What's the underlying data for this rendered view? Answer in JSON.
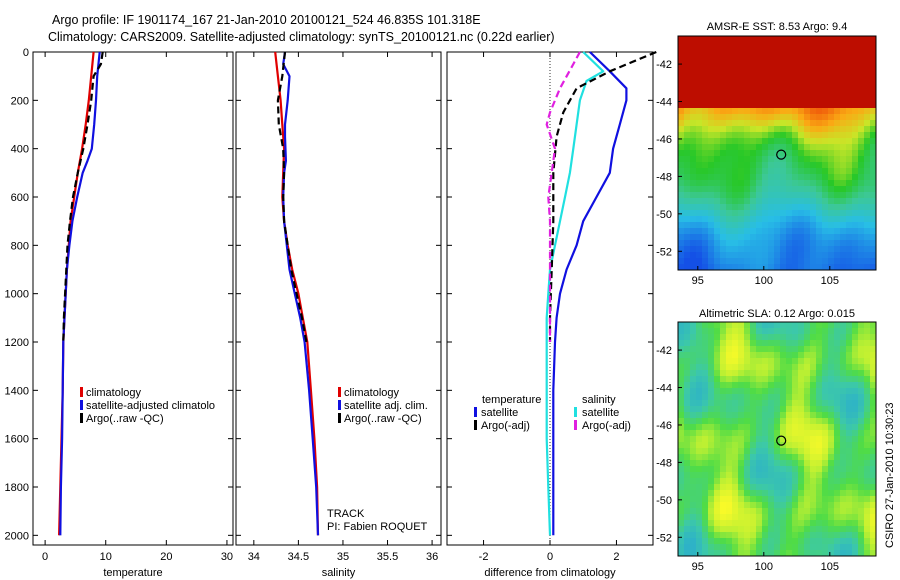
{
  "header": {
    "line1": "Argo profile: IF 1901174_167 21-Jan-2010 20100121_524 46.835S 101.318E",
    "line2": "Climatology: CARS2009. Satellite-adjusted climatology: synTS_20100121.nc (0.22d earlier)"
  },
  "footer": {
    "credit": "CSIRO 27-Jan-2010 10:30:23"
  },
  "colors": {
    "red": "#e00000",
    "blue": "#1010e0",
    "black": "#000000",
    "cyan": "#20e0e0",
    "magenta": "#e020e0"
  },
  "chart_data": [
    {
      "type": "line",
      "id": "temperature",
      "xlabel": "temperature",
      "xlim": [
        -2,
        31
      ],
      "ylim": [
        0,
        2040
      ],
      "y_reversed": true,
      "xticks": [
        0,
        10,
        20,
        30
      ],
      "yticks": [
        0,
        200,
        400,
        600,
        800,
        1000,
        1200,
        1400,
        1600,
        1800,
        2000
      ],
      "legend": [
        "climatology",
        "satellite-adjusted climatolo",
        "Argo(..raw -QC)"
      ],
      "series": [
        {
          "name": "climatology",
          "color": "red",
          "dash": "solid",
          "points": [
            [
              8.0,
              0
            ],
            [
              7.6,
              100
            ],
            [
              7.2,
              200
            ],
            [
              6.7,
              300
            ],
            [
              6.1,
              400
            ],
            [
              5.4,
              500
            ],
            [
              4.8,
              600
            ],
            [
              4.2,
              700
            ],
            [
              3.9,
              800
            ],
            [
              3.6,
              900
            ],
            [
              3.4,
              1000
            ],
            [
              3.2,
              1100
            ],
            [
              3.0,
              1200
            ],
            [
              2.9,
              1400
            ],
            [
              2.7,
              1600
            ],
            [
              2.5,
              1800
            ],
            [
              2.3,
              2000
            ]
          ]
        },
        {
          "name": "satellite-adjusted climatolo",
          "color": "blue",
          "dash": "solid",
          "points": [
            [
              9.0,
              0
            ],
            [
              8.6,
              100
            ],
            [
              8.4,
              200
            ],
            [
              8.1,
              300
            ],
            [
              7.7,
              400
            ],
            [
              7.0,
              450
            ],
            [
              6.2,
              500
            ],
            [
              5.3,
              600
            ],
            [
              4.5,
              700
            ],
            [
              4.0,
              800
            ],
            [
              3.6,
              900
            ],
            [
              3.4,
              1000
            ],
            [
              3.2,
              1100
            ],
            [
              3.0,
              1200
            ],
            [
              2.9,
              1400
            ],
            [
              2.8,
              1600
            ],
            [
              2.6,
              1800
            ],
            [
              2.5,
              2000
            ]
          ]
        },
        {
          "name": "Argo(..raw -QC)",
          "color": "black",
          "dash": "dash",
          "points": [
            [
              9.5,
              0
            ],
            [
              9.2,
              50
            ],
            [
              8.0,
              100
            ],
            [
              7.6,
              200
            ],
            [
              7.0,
              300
            ],
            [
              6.3,
              400
            ],
            [
              5.4,
              500
            ],
            [
              4.6,
              600
            ],
            [
              4.1,
              700
            ],
            [
              3.7,
              800
            ],
            [
              3.5,
              900
            ],
            [
              3.3,
              1000
            ],
            [
              3.1,
              1100
            ],
            [
              3.0,
              1200
            ]
          ]
        }
      ]
    },
    {
      "type": "line",
      "id": "salinity",
      "xlabel": "salinity",
      "xlim": [
        33.8,
        36.1
      ],
      "ylim": [
        0,
        2040
      ],
      "y_reversed": true,
      "xticks": [
        34,
        34.5,
        35,
        35.5,
        36
      ],
      "legend": [
        "climatology",
        "satellite adj. clim.",
        "Argo(..raw -QC)"
      ],
      "annotations": [
        "TRACK",
        "PI: Fabien ROQUET"
      ],
      "series": [
        {
          "name": "climatology",
          "color": "red",
          "dash": "solid",
          "points": [
            [
              34.24,
              0
            ],
            [
              34.27,
              100
            ],
            [
              34.3,
              200
            ],
            [
              34.32,
              300
            ],
            [
              34.34,
              400
            ],
            [
              34.33,
              500
            ],
            [
              34.32,
              600
            ],
            [
              34.34,
              700
            ],
            [
              34.38,
              800
            ],
            [
              34.43,
              900
            ],
            [
              34.5,
              1000
            ],
            [
              34.55,
              1100
            ],
            [
              34.6,
              1200
            ],
            [
              34.64,
              1400
            ],
            [
              34.68,
              1600
            ],
            [
              34.71,
              1800
            ],
            [
              34.72,
              2000
            ]
          ]
        },
        {
          "name": "satellite adj. clim.",
          "color": "blue",
          "dash": "solid",
          "points": [
            [
              34.35,
              0
            ],
            [
              34.33,
              50
            ],
            [
              34.4,
              100
            ],
            [
              34.38,
              200
            ],
            [
              34.35,
              300
            ],
            [
              34.35,
              350
            ],
            [
              34.36,
              450
            ],
            [
              34.34,
              500
            ],
            [
              34.33,
              600
            ],
            [
              34.34,
              700
            ],
            [
              34.37,
              800
            ],
            [
              34.4,
              900
            ],
            [
              34.46,
              1000
            ],
            [
              34.52,
              1100
            ],
            [
              34.57,
              1200
            ],
            [
              34.62,
              1400
            ],
            [
              34.66,
              1600
            ],
            [
              34.7,
              1800
            ],
            [
              34.72,
              2000
            ]
          ]
        },
        {
          "name": "Argo(..raw -QC)",
          "color": "black",
          "dash": "dash",
          "points": [
            [
              34.35,
              0
            ],
            [
              34.32,
              100
            ],
            [
              34.27,
              200
            ],
            [
              34.28,
              300
            ],
            [
              34.33,
              400
            ],
            [
              34.34,
              500
            ],
            [
              34.33,
              600
            ],
            [
              34.34,
              700
            ],
            [
              34.38,
              800
            ],
            [
              34.42,
              900
            ],
            [
              34.48,
              1000
            ],
            [
              34.54,
              1100
            ],
            [
              34.59,
              1200
            ]
          ]
        }
      ]
    },
    {
      "type": "line",
      "id": "difference",
      "xlabel": "difference from climatology",
      "xlim": [
        -3.1,
        3.1
      ],
      "ylim": [
        0,
        2040
      ],
      "y_reversed": true,
      "xticks": [
        -2,
        0,
        2
      ],
      "zero_line": true,
      "legend_titles": [
        "temperature",
        "salinity"
      ],
      "legend": [
        "satellite",
        "Argo(-adj)",
        "satellite",
        "Argo(-adj)"
      ],
      "series": [
        {
          "name": "satellite",
          "group": "temperature",
          "color": "blue",
          "dash": "solid",
          "points": [
            [
              1.2,
              0
            ],
            [
              1.8,
              80
            ],
            [
              2.3,
              150
            ],
            [
              2.3,
              200
            ],
            [
              2.1,
              300
            ],
            [
              1.9,
              400
            ],
            [
              1.8,
              500
            ],
            [
              1.4,
              600
            ],
            [
              1.0,
              700
            ],
            [
              0.8,
              800
            ],
            [
              0.5,
              900
            ],
            [
              0.3,
              1000
            ],
            [
              0.2,
              1100
            ],
            [
              0.15,
              1200
            ],
            [
              0.1,
              1400
            ],
            [
              0.1,
              1600
            ],
            [
              0.1,
              1800
            ],
            [
              0.1,
              2000
            ]
          ]
        },
        {
          "name": "satellite",
          "group": "salinity",
          "color": "cyan",
          "dash": "solid",
          "points": [
            [
              1.0,
              0
            ],
            [
              1.6,
              80
            ],
            [
              1.1,
              120
            ],
            [
              0.9,
              200
            ],
            [
              0.8,
              300
            ],
            [
              0.7,
              400
            ],
            [
              0.6,
              500
            ],
            [
              0.45,
              600
            ],
            [
              0.3,
              700
            ],
            [
              0.15,
              800
            ],
            [
              0.0,
              900
            ],
            [
              -0.05,
              1000
            ],
            [
              -0.1,
              1100
            ],
            [
              -0.1,
              1200
            ],
            [
              -0.1,
              1400
            ],
            [
              -0.1,
              1600
            ],
            [
              -0.05,
              1800
            ],
            [
              0.0,
              2000
            ]
          ]
        },
        {
          "name": "Argo(-adj)",
          "group": "temperature",
          "color": "black",
          "dash": "dash",
          "points": [
            [
              3.2,
              0
            ],
            [
              1.8,
              80
            ],
            [
              0.8,
              150
            ],
            [
              0.4,
              250
            ],
            [
              0.2,
              350
            ],
            [
              0.1,
              500
            ],
            [
              0.1,
              700
            ],
            [
              0.05,
              900
            ],
            [
              0.0,
              1100
            ],
            [
              0.0,
              1200
            ]
          ]
        },
        {
          "name": "Argo(-adj)",
          "group": "salinity",
          "color": "magenta",
          "dash": "dash",
          "points": [
            [
              0.9,
              0
            ],
            [
              0.7,
              50
            ],
            [
              0.3,
              150
            ],
            [
              0.0,
              250
            ],
            [
              -0.1,
              300
            ],
            [
              0.15,
              400
            ],
            [
              0.05,
              500
            ],
            [
              -0.05,
              600
            ],
            [
              0.0,
              700
            ],
            [
              0.0,
              900
            ],
            [
              0.0,
              1100
            ],
            [
              0.0,
              1200
            ]
          ]
        }
      ]
    },
    {
      "type": "heatmap",
      "id": "sst",
      "title": "AMSR-E SST: 8.53  Argo: 9.4",
      "xlim": [
        93.5,
        108.5
      ],
      "ylim": [
        -53,
        -40.5
      ],
      "xticks": [
        95,
        100,
        105
      ],
      "yticks": [
        -42,
        -44,
        -46,
        -48,
        -50,
        -52
      ],
      "marker": {
        "lon": 101.318,
        "lat": -46.835
      }
    },
    {
      "type": "heatmap",
      "id": "sla",
      "title": "Altimetric SLA: 0.12  Argo: 0.015",
      "xlim": [
        93.5,
        108.5
      ],
      "ylim": [
        -53,
        -40.5
      ],
      "xticks": [
        95,
        100,
        105
      ],
      "yticks": [
        -42,
        -44,
        -46,
        -48,
        -50,
        -52
      ],
      "marker": {
        "lon": 101.318,
        "lat": -46.835
      }
    }
  ]
}
